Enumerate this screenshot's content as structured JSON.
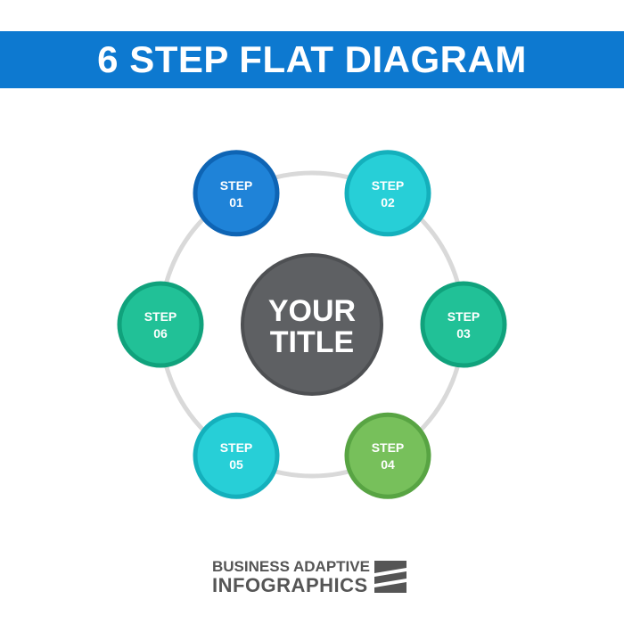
{
  "header": {
    "title": "6 STEP FLAT DIAGRAM"
  },
  "center": {
    "line1": "YOUR",
    "line2": "TITLE",
    "color": "#5e6063",
    "border": "#4e5053"
  },
  "steps": [
    {
      "line1": "STEP",
      "line2": "01",
      "fill": "#1f83d8",
      "border": "#0e64b4"
    },
    {
      "line1": "STEP",
      "line2": "02",
      "fill": "#27cfd7",
      "border": "#14b0bc"
    },
    {
      "line1": "STEP",
      "line2": "03",
      "fill": "#21c197",
      "border": "#10a27c"
    },
    {
      "line1": "STEP",
      "line2": "04",
      "fill": "#77c05b",
      "border": "#58a443"
    },
    {
      "line1": "STEP",
      "line2": "05",
      "fill": "#27cfd7",
      "border": "#14b0bc"
    },
    {
      "line1": "STEP",
      "line2": "06",
      "fill": "#21c197",
      "border": "#10a27c"
    }
  ],
  "ring": {
    "color": "#d9d9d9"
  },
  "brand": {
    "line1": "BUSINESS ADAPTIVE",
    "line2": "INFOGRAPHICS",
    "logo": "striped-square-logo"
  }
}
